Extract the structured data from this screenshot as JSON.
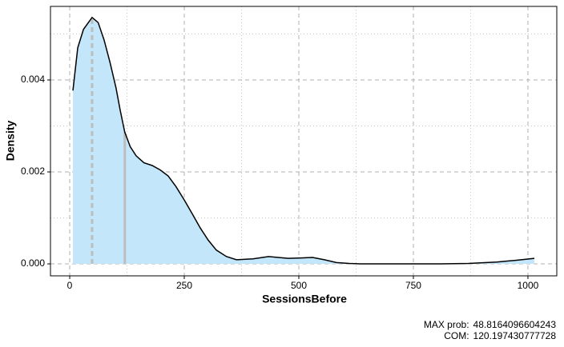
{
  "chart_data": {
    "type": "density",
    "x_label": "SessionsBefore",
    "y_label": "Density",
    "x": [
      7,
      17.5,
      30,
      48.8,
      62,
      75,
      88,
      101,
      110,
      120,
      132,
      145,
      162,
      180,
      198,
      215,
      232,
      250,
      268,
      285,
      302,
      320,
      342,
      364,
      400,
      434,
      455,
      477,
      505,
      530,
      556,
      582,
      610,
      635,
      700,
      809,
      870,
      932,
      975,
      1014
    ],
    "values": [
      0.00377,
      0.0047,
      0.0051,
      0.00536,
      0.00525,
      0.00487,
      0.00438,
      0.00383,
      0.00335,
      0.00287,
      0.00255,
      0.00235,
      0.0022,
      0.00214,
      0.00204,
      0.00191,
      0.00168,
      0.00139,
      0.00108,
      0.00078,
      0.00052,
      0.0003,
      0.00016,
      9e-05,
      0.00011,
      0.00016,
      0.00014,
      0.00012,
      0.00013,
      0.00014,
      9e-05,
      3e-05,
      1e-05,
      0,
      0,
      0,
      1e-05,
      4e-05,
      8e-05,
      0.00012
    ],
    "line_color": "#000000",
    "fill_color": "#c4e6fb",
    "xlim": [
      -42,
      1063
    ],
    "ylim": [
      -0.00026,
      0.0056
    ],
    "xticks": [
      0,
      250,
      500,
      750,
      1000
    ],
    "yticks": [
      {
        "value": 0,
        "label": "0.000"
      },
      {
        "value": 0.002,
        "label": "0.002"
      },
      {
        "value": 0.004,
        "label": "0.004"
      }
    ],
    "minor_xticks": [
      125,
      375,
      625,
      875
    ],
    "minor_yticks": [
      0.001,
      0.003,
      0.005
    ],
    "grid": true,
    "annotations": [
      {
        "label": "MAX prob:",
        "value": 48.8164096604243,
        "line": "dashed"
      },
      {
        "label": "COM:",
        "value": 120.197430777728,
        "line": "solid"
      }
    ]
  }
}
